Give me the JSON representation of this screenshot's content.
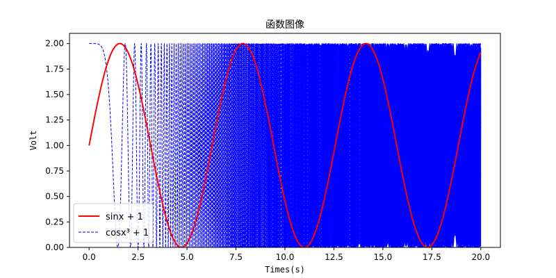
{
  "chart_data": {
    "type": "line",
    "title": "函数图像",
    "xlabel": "Times(s)",
    "ylabel": "Volt",
    "xlim": [
      -1.0,
      21.0
    ],
    "ylim": [
      0.0,
      2.1
    ],
    "xticks": [
      0.0,
      2.5,
      5.0,
      7.5,
      10.0,
      12.5,
      15.0,
      17.5,
      20.0
    ],
    "xtick_labels": [
      "0.0",
      "2.5",
      "5.0",
      "7.5",
      "10.0",
      "12.5",
      "15.0",
      "17.5",
      "20.0"
    ],
    "yticks": [
      0.0,
      0.25,
      0.5,
      0.75,
      1.0,
      1.25,
      1.5,
      1.75,
      2.0
    ],
    "ytick_labels": [
      "0.00",
      "0.25",
      "0.50",
      "0.75",
      "1.00",
      "1.25",
      "1.50",
      "1.75",
      "2.00"
    ],
    "grid": false,
    "legend_position": "lower-left",
    "x_range": [
      0,
      20
    ],
    "series": [
      {
        "name": "sinx + 1",
        "formula": "sin(x)+1",
        "color": "#ff0000",
        "style": "solid",
        "width": 2
      },
      {
        "name": "cosx³ + 1",
        "formula": "cos(x^3)+1",
        "color": "#0000ff",
        "style": "dashed",
        "width": 1
      }
    ]
  }
}
